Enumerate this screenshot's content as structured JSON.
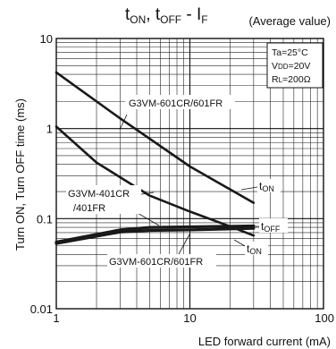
{
  "chart_data": {
    "type": "line",
    "title_main": "t",
    "title_sub_on": "ON",
    "title_sep": ", t",
    "title_sub_off": "OFF",
    "title_tail": " - I",
    "title_sub_f": "F",
    "subtitle": "(Average value)",
    "xlabel": "LED forward current (mA)",
    "ylabel": "Turn ON, Turn OFF time (ms)",
    "x_scale": "log",
    "y_scale": "log",
    "xlim": [
      1,
      100
    ],
    "ylim": [
      0.01,
      10
    ],
    "x_ticks": [
      {
        "value": 1,
        "label": "1"
      },
      {
        "value": 10,
        "label": "10"
      },
      {
        "value": 100,
        "label": "100"
      }
    ],
    "y_ticks": [
      {
        "value": 10,
        "label": "10"
      },
      {
        "value": 1,
        "label": "1"
      },
      {
        "value": 0.1,
        "label": "0.1"
      },
      {
        "value": 0.01,
        "label": "0.01"
      }
    ],
    "grid": true,
    "conditions": [
      "Ta=25°C",
      "VDD=20V",
      "RL=200Ω"
    ],
    "series": [
      {
        "id": "ton-601",
        "x": [
          1,
          3,
          10,
          30
        ],
        "y": [
          4.2,
          1.3,
          0.38,
          0.15
        ],
        "width": 2.6
      },
      {
        "id": "ton-401",
        "x": [
          1,
          2,
          5,
          10,
          20,
          30
        ],
        "y": [
          1.05,
          0.42,
          0.18,
          0.12,
          0.082,
          0.065
        ],
        "width": 2.6
      },
      {
        "id": "toff",
        "x": [
          1,
          3,
          5,
          10,
          30
        ],
        "y": [
          0.055,
          0.075,
          0.08,
          0.081,
          0.083
        ],
        "width": 3.2
      },
      {
        "id": "ton-601-low",
        "x": [
          1,
          3,
          5,
          10,
          30
        ],
        "y": [
          0.053,
          0.071,
          0.074,
          0.075,
          0.078
        ],
        "width": 3.2
      }
    ],
    "annotations": [
      {
        "id": "label-601-upper",
        "text": "G3VM-601CR/601FR"
      },
      {
        "id": "label-401-line1",
        "text": "G3VM-401CR"
      },
      {
        "id": "label-401-line2",
        "text": "/401FR"
      },
      {
        "id": "label-601-lower",
        "text": "G3VM-601CR/601FR"
      },
      {
        "id": "label-ton-upper-t",
        "text": "t"
      },
      {
        "id": "label-ton-upper-sub",
        "text": "ON"
      },
      {
        "id": "label-toff-t",
        "text": "t"
      },
      {
        "id": "label-toff-sub",
        "text": "OFF"
      },
      {
        "id": "label-ton-lower-t",
        "text": "t"
      },
      {
        "id": "label-ton-lower-sub",
        "text": "ON"
      }
    ],
    "cond_parts": {
      "ta": "Ta=25°C",
      "v": "V",
      "v_sub": "DD",
      "v_val": "=20V",
      "r": "R",
      "r_sub": "L",
      "r_val": "=200Ω"
    }
  }
}
